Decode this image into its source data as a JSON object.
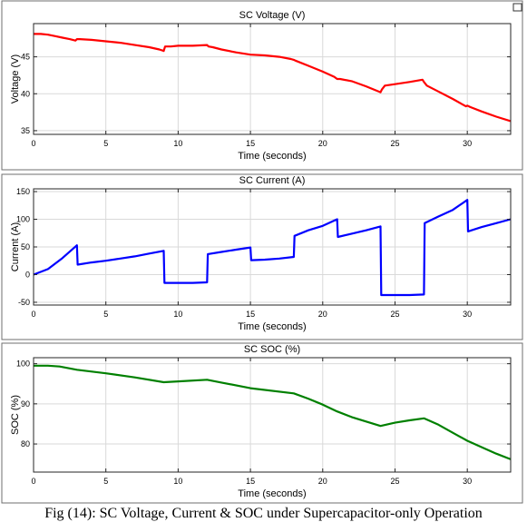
{
  "caption": "Fig (14): SC Voltage, Current & SOC under Supercapacitor-only Operation",
  "colors": {
    "background": "#ffffff",
    "axes_bg": "#ffffff",
    "grid": "#d9d9d9",
    "axis": "#262626"
  },
  "chart_data": [
    {
      "type": "line",
      "title": "SC Voltage (V)",
      "xlabel": "Time (seconds)",
      "ylabel": "Voltage (V)",
      "xlim": [
        0,
        33
      ],
      "ylim": [
        34.5,
        49.5
      ],
      "xticks": [
        0,
        5,
        10,
        15,
        20,
        25,
        30
      ],
      "yticks": [
        35,
        40,
        45
      ],
      "grid": true,
      "series": [
        {
          "color": "#ff0000",
          "x": [
            0,
            0.5,
            1,
            1.5,
            2,
            2.5,
            2.9,
            3.0,
            3.2,
            4,
            5,
            6,
            7,
            8,
            8.7,
            9.0,
            9.1,
            9.5,
            10,
            11,
            12,
            12.1,
            12.4,
            13,
            14,
            15,
            16,
            17,
            17.8,
            18.0,
            18.1,
            19,
            20,
            20.8,
            21.0,
            21.2,
            22,
            23,
            24.0,
            24.1,
            24.3,
            25,
            26,
            26.9,
            27.0,
            27.2,
            28,
            29,
            29.9,
            30.0,
            30.2,
            31,
            32,
            33
          ],
          "y": [
            48.1,
            48.1,
            48.0,
            47.8,
            47.6,
            47.4,
            47.2,
            47.4,
            47.4,
            47.3,
            47.1,
            46.9,
            46.6,
            46.3,
            46.0,
            45.8,
            46.4,
            46.4,
            46.5,
            46.5,
            46.6,
            46.4,
            46.3,
            46.0,
            45.6,
            45.3,
            45.2,
            45.0,
            44.7,
            44.6,
            44.5,
            43.8,
            43.0,
            42.3,
            42.0,
            42.0,
            41.7,
            41.0,
            40.2,
            40.6,
            41.1,
            41.3,
            41.6,
            41.9,
            41.6,
            41.1,
            40.3,
            39.3,
            38.3,
            38.4,
            38.2,
            37.6,
            36.9,
            36.3
          ]
        }
      ]
    },
    {
      "type": "line",
      "title": "SC Current (A)",
      "xlabel": "Time (seconds)",
      "ylabel": "Current (A)",
      "xlim": [
        0,
        33
      ],
      "ylim": [
        -55,
        155
      ],
      "xticks": [
        0,
        5,
        10,
        15,
        20,
        25,
        30
      ],
      "yticks": [
        -50,
        0,
        50,
        100,
        150
      ],
      "grid": true,
      "series": [
        {
          "color": "#0000ff",
          "x": [
            0,
            1,
            2,
            3.0,
            3.05,
            4,
            5,
            6,
            7,
            8,
            9.0,
            9.05,
            10,
            11,
            12.0,
            12.05,
            13,
            14,
            15.0,
            15.05,
            16,
            17,
            18.0,
            18.05,
            19,
            20,
            21.0,
            21.05,
            22,
            23,
            24.0,
            24.05,
            25,
            26,
            27.0,
            27.05,
            28,
            29,
            30.0,
            30.05,
            31,
            32,
            33
          ],
          "y": [
            0,
            10,
            30,
            53,
            18,
            22,
            25,
            29,
            33,
            38,
            43,
            -15,
            -15,
            -15,
            -14,
            37,
            41,
            45,
            49,
            26,
            27,
            29,
            32,
            70,
            80,
            88,
            100,
            68,
            74,
            80,
            87,
            -37,
            -37,
            -37,
            -36,
            93,
            105,
            117,
            135,
            78,
            86,
            93,
            100
          ]
        }
      ]
    },
    {
      "type": "line",
      "title": "SC SOC (%)",
      "xlabel": "Time (seconds)",
      "ylabel": "SOC (%)",
      "xlim": [
        0,
        33
      ],
      "ylim": [
        73,
        101.5
      ],
      "xticks": [
        0,
        5,
        10,
        15,
        20,
        25,
        30
      ],
      "yticks": [
        80,
        90,
        100
      ],
      "grid": true,
      "series": [
        {
          "color": "#008000",
          "x": [
            0,
            1,
            1.8,
            3,
            5,
            7,
            9,
            10,
            12,
            13,
            15,
            18,
            19,
            20,
            21,
            22,
            23,
            24,
            25,
            26,
            27,
            28,
            29,
            30,
            31,
            32,
            33
          ],
          "y": [
            99.5,
            99.5,
            99.3,
            98.5,
            97.6,
            96.6,
            95.4,
            95.6,
            96.0,
            95.3,
            93.9,
            92.6,
            91.3,
            89.8,
            88.1,
            86.7,
            85.6,
            84.5,
            85.3,
            85.9,
            86.4,
            84.8,
            82.8,
            80.8,
            79.2,
            77.6,
            76.2
          ]
        }
      ]
    }
  ]
}
